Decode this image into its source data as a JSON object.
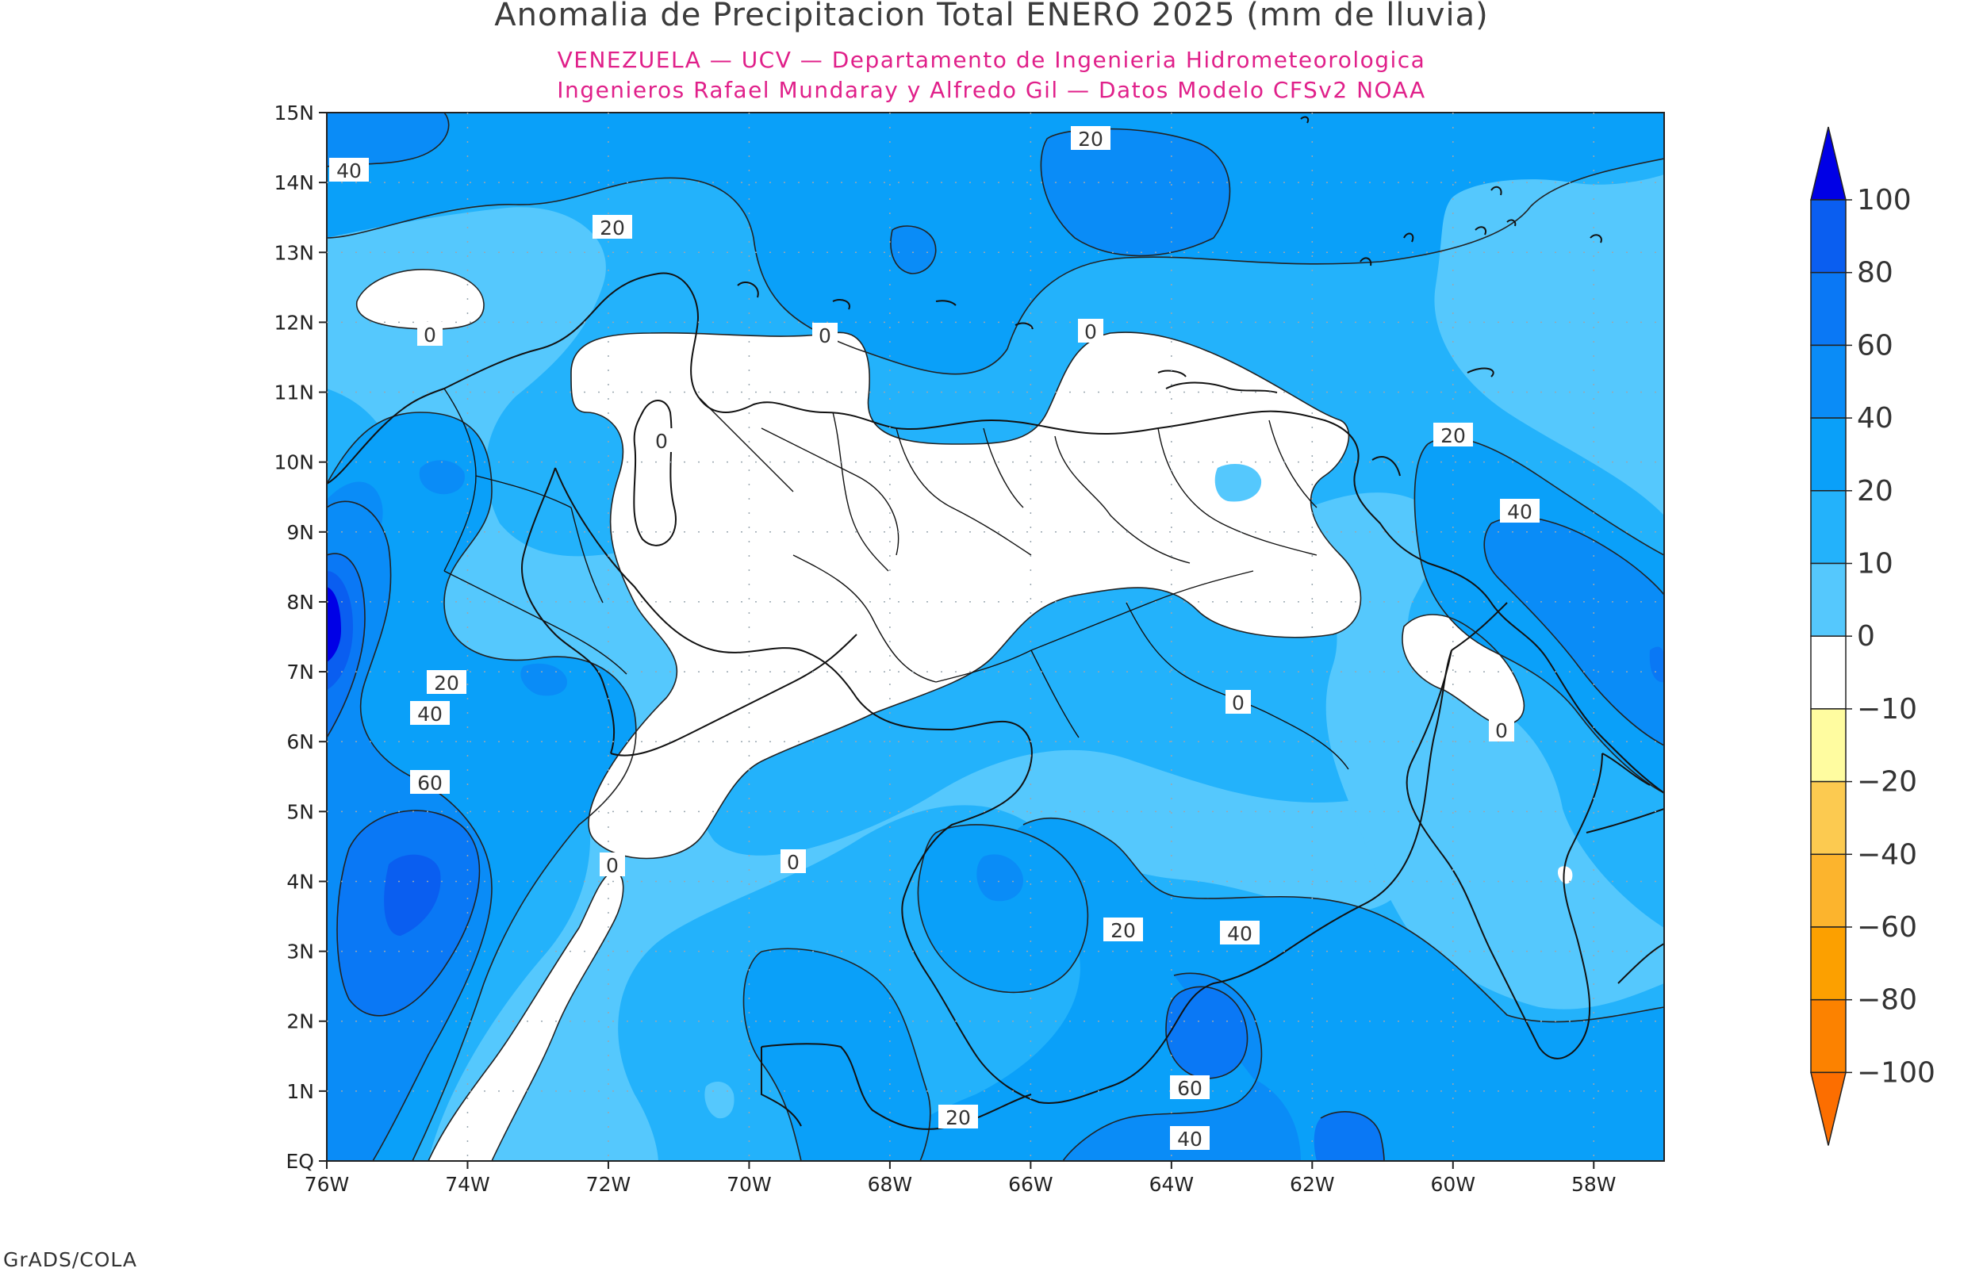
{
  "title": "Anomalia de Precipitacion Total ENERO 2025 (mm de lluvia)",
  "subtitle_1": "VENEZUELA — UCV — Departamento de Ingenieria Hidrometeorologica",
  "subtitle_2": "Ingenieros Rafael Mundaray y Alfredo Gil — Datos Modelo CFSv2 NOAA",
  "footer": "GrADS/COLA",
  "map": {
    "lat_ticks": [
      "15N",
      "14N",
      "13N",
      "12N",
      "11N",
      "10N",
      "9N",
      "8N",
      "7N",
      "6N",
      "5N",
      "4N",
      "3N",
      "2N",
      "1N",
      "EQ"
    ],
    "lon_ticks": [
      "76W",
      "74W",
      "72W",
      "70W",
      "68W",
      "66W",
      "64W",
      "62W",
      "60W",
      "58W"
    ]
  },
  "contour_labels": [
    "40",
    "20",
    "0",
    "0",
    "0",
    "20",
    "0",
    "20",
    "40",
    "20",
    "40",
    "60",
    "0",
    "0",
    "0",
    "20",
    "40",
    "60",
    "40",
    "20",
    "0"
  ],
  "legend": {
    "labels": [
      "100",
      "80",
      "60",
      "40",
      "20",
      "10",
      "0",
      "−10",
      "−20",
      "−40",
      "−60",
      "−80",
      "−100"
    ],
    "colors": {
      "100+": "#0000e6",
      "80-100": "#0a5ef0",
      "60-80": "#0a78f5",
      "40-60": "#0a8cf7",
      "20-40": "#0aa0f9",
      "10-20": "#23b2fb",
      "0-10": "#55c8fd",
      "-10-0": "#ffffff",
      "-20--10": "#fffca0",
      "-40--20": "#fcca50",
      "-60--40": "#fcb42d",
      "-80--60": "#fca000",
      "-100--80": "#fc8200",
      "below": "#fc6e00"
    }
  }
}
